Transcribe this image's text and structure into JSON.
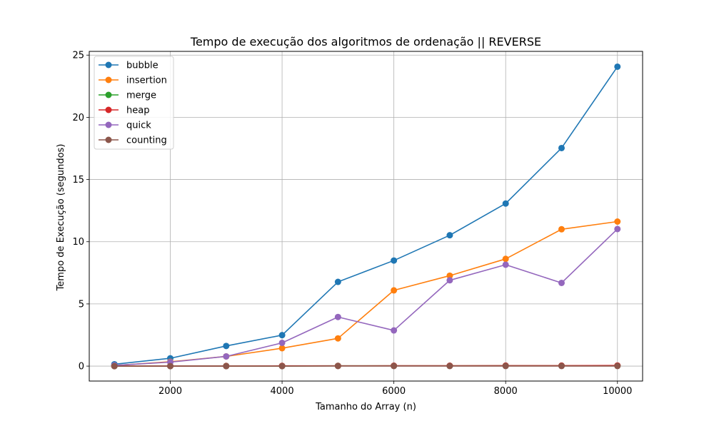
{
  "chart_data": {
    "type": "line",
    "title": "Tempo de execução dos algoritmos de ordenação || REVERSE",
    "xlabel": "Tamanho do Array (n)",
    "ylabel": "Tempo de Execução (segundos)",
    "x": [
      1000,
      2000,
      3000,
      4000,
      5000,
      6000,
      7000,
      8000,
      9000,
      10000
    ],
    "xlim": [
      550,
      10450
    ],
    "ylim": [
      -1.2,
      25.3
    ],
    "xticks": [
      2000,
      4000,
      6000,
      8000,
      10000
    ],
    "yticks": [
      0,
      5,
      10,
      15,
      20,
      25
    ],
    "grid": true,
    "legend_position": "top-left",
    "series": [
      {
        "name": "bubble",
        "color": "#1f77b4",
        "values": [
          0.15,
          0.63,
          1.62,
          2.49,
          6.77,
          8.49,
          10.52,
          13.07,
          17.53,
          24.07
        ]
      },
      {
        "name": "insertion",
        "color": "#ff7f0e",
        "values": [
          0.05,
          0.35,
          0.78,
          1.44,
          2.23,
          6.09,
          7.27,
          8.62,
          11.0,
          11.62
        ]
      },
      {
        "name": "merge",
        "color": "#2ca02c",
        "values": [
          0.0,
          0.01,
          0.01,
          0.01,
          0.02,
          0.02,
          0.02,
          0.03,
          0.03,
          0.03
        ]
      },
      {
        "name": "heap",
        "color": "#d62728",
        "values": [
          0.01,
          0.01,
          0.01,
          0.02,
          0.02,
          0.03,
          0.03,
          0.04,
          0.04,
          0.05
        ]
      },
      {
        "name": "quick",
        "color": "#9467bd",
        "values": [
          0.06,
          0.32,
          0.78,
          1.87,
          3.95,
          2.87,
          6.9,
          8.15,
          6.69,
          11.02
        ]
      },
      {
        "name": "counting",
        "color": "#8c564b",
        "values": [
          0.0,
          0.0,
          0.0,
          0.0,
          0.01,
          0.01,
          0.01,
          0.01,
          0.01,
          0.01
        ]
      }
    ]
  }
}
